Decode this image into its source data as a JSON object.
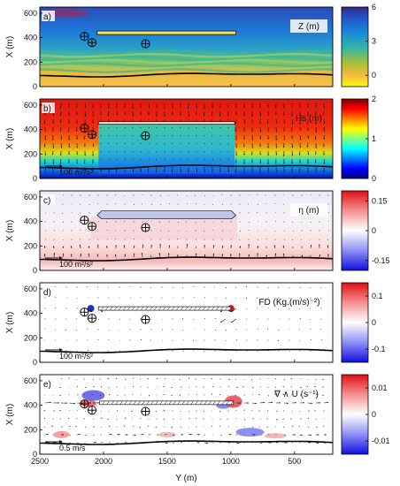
{
  "chart_data": {
    "type": "heatmap",
    "xlabel": "Y (m)",
    "x_ticks": [
      "2500",
      "2000",
      "1500",
      "1000",
      "500"
    ],
    "x_range": [
      2500,
      200
    ],
    "y_ticks": [
      "0",
      "200",
      "400",
      "600"
    ],
    "y_range": [
      0,
      650
    ],
    "markers_xy": [
      [
        2150,
        410
      ],
      [
        2090,
        360
      ],
      [
        1670,
        350
      ]
    ],
    "panels": [
      {
        "letter": "a)",
        "ylabel": "X (m)",
        "label": "Z (m)",
        "colormap": "parula",
        "cbar_ticks": [
          "6",
          "3",
          "0"
        ],
        "cbar_tick_values": [
          6,
          3,
          0
        ],
        "cbar_range": [
          -1,
          6
        ],
        "structure": {
          "y_from": 2050,
          "y_to": 960,
          "x": 440
        },
        "vectors": "none"
      },
      {
        "letter": "b)",
        "ylabel": "X (m)",
        "label": "Hs (m)",
        "colormap": "jet",
        "cbar_ticks": [
          "2",
          "1",
          "0"
        ],
        "cbar_tick_values": [
          2,
          1,
          0
        ],
        "cbar_range": [
          0,
          2
        ],
        "vector_scale_label": "100 m²/s²",
        "structure": {
          "y_from": 2040,
          "y_to": 970,
          "x": 450
        },
        "vectors": "dense"
      },
      {
        "letter": "c)",
        "ylabel": "X (m)",
        "label": "η (m)",
        "colormap": "bwr",
        "cbar_ticks": [
          "0.15",
          "0",
          "-0.15"
        ],
        "cbar_tick_values": [
          0.15,
          0,
          -0.15
        ],
        "cbar_range": [
          -0.2,
          0.2
        ],
        "vector_scale_label": "100 m²/s²",
        "structure": {
          "y_from": 2050,
          "y_to": 960,
          "x": 450
        },
        "vectors": "medium"
      },
      {
        "letter": "d)",
        "ylabel": "X (m)",
        "label": "FD (Kg.(m/s)⁻²)",
        "colormap": "bwr",
        "cbar_ticks": [
          "0.1",
          "0",
          "-0.1"
        ],
        "cbar_tick_values": [
          0.1,
          0,
          -0.1
        ],
        "cbar_range": [
          -0.15,
          0.15
        ],
        "vector_scale_label": "100 m²/s²",
        "structure": {
          "y_from": 2040,
          "y_to": 1000,
          "x": 440
        },
        "vectors": "sparse"
      },
      {
        "letter": "e)",
        "ylabel": "X (m)",
        "label": "∇ ∧ U (s⁻¹)",
        "colormap": "bwr",
        "cbar_ticks": [
          "0.01",
          "0",
          "-0.01"
        ],
        "cbar_tick_values": [
          0.01,
          0,
          -0.01
        ],
        "cbar_range": [
          -0.015,
          0.015
        ],
        "vector_scale_label": "0.5 m/s",
        "structure": {
          "y_from": 2030,
          "y_to": 980,
          "x": 420
        },
        "vectors": "dense"
      }
    ]
  }
}
